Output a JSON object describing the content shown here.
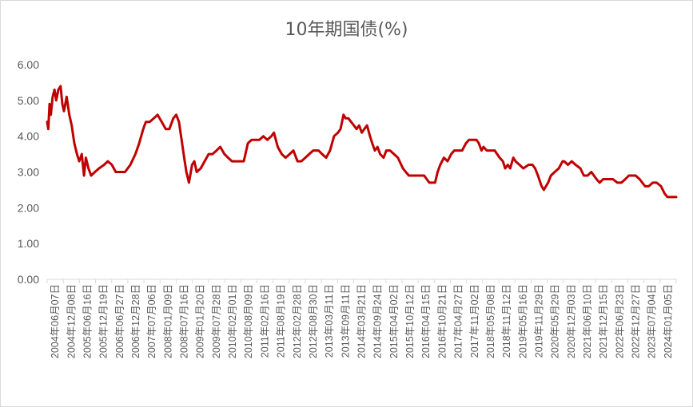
{
  "chart_data": {
    "type": "line",
    "title": "10年期国债(%)",
    "xlabel": "",
    "ylabel": "",
    "ylim": [
      0,
      6
    ],
    "yticks": [
      "0.00",
      "1.00",
      "2.00",
      "3.00",
      "4.00",
      "5.00",
      "6.00"
    ],
    "grid": false,
    "legend": "none",
    "line_color": "#c00000",
    "x_tick_labels": [
      "2004年06月07日",
      "2004年12月08日",
      "2005年06月16日",
      "2005年12月19日",
      "2006年06月27日",
      "2006年12月28日",
      "2007年07月06日",
      "2008年01月09日",
      "2008年07月16日",
      "2009年01月20日",
      "2009年07月28日",
      "2010年02月01日",
      "2010年08月09日",
      "2011年02月16日",
      "2011年08月19日",
      "2012年02月28日",
      "2012年08月30日",
      "2013年03月11日",
      "2013年09月11日",
      "2014年03月21日",
      "2014年09月24日",
      "2015年04月02日",
      "2015年10月12日",
      "2016年04月15日",
      "2016年10月21日",
      "2017年04月27日",
      "2017年11月02日",
      "2018年05月08日",
      "2018年11月12日",
      "2019年05月16日",
      "2019年11月29日",
      "2020年05月29日",
      "2020年12月03日",
      "2021年06月10日",
      "2021年12月15日",
      "2022年06月23日",
      "2022年12月27日",
      "2023年07月04日",
      "2024年01月05日"
    ],
    "x_start": "2004-06-07",
    "x_end": "2024-06-30",
    "series": [
      {
        "points": [
          [
            "2004-06-07",
            4.4
          ],
          [
            "2004-06-20",
            4.2
          ],
          [
            "2004-07-05",
            4.9
          ],
          [
            "2004-07-20",
            4.6
          ],
          [
            "2004-08-10",
            5.1
          ],
          [
            "2004-09-01",
            5.3
          ],
          [
            "2004-09-20",
            5.0
          ],
          [
            "2004-10-15",
            5.3
          ],
          [
            "2004-11-10",
            5.4
          ],
          [
            "2004-12-01",
            4.9
          ],
          [
            "2004-12-20",
            4.7
          ],
          [
            "2005-01-20",
            5.1
          ],
          [
            "2005-02-20",
            4.6
          ],
          [
            "2005-03-20",
            4.3
          ],
          [
            "2005-04-20",
            3.8
          ],
          [
            "2005-05-20",
            3.5
          ],
          [
            "2005-06-15",
            3.3
          ],
          [
            "2005-07-15",
            3.5
          ],
          [
            "2005-08-10",
            2.9
          ],
          [
            "2005-09-01",
            3.4
          ],
          [
            "2005-10-01",
            3.1
          ],
          [
            "2005-11-01",
            2.9
          ],
          [
            "2005-12-15",
            3.0
          ],
          [
            "2006-02-01",
            3.1
          ],
          [
            "2006-04-01",
            3.2
          ],
          [
            "2006-05-15",
            3.3
          ],
          [
            "2006-07-01",
            3.2
          ],
          [
            "2006-08-15",
            3.0
          ],
          [
            "2006-10-01",
            3.0
          ],
          [
            "2006-12-01",
            3.0
          ],
          [
            "2007-02-01",
            3.2
          ],
          [
            "2007-04-01",
            3.5
          ],
          [
            "2007-05-15",
            3.8
          ],
          [
            "2007-07-01",
            4.2
          ],
          [
            "2007-08-01",
            4.4
          ],
          [
            "2007-09-15",
            4.4
          ],
          [
            "2007-11-01",
            4.5
          ],
          [
            "2007-12-15",
            4.6
          ],
          [
            "2008-02-01",
            4.4
          ],
          [
            "2008-03-20",
            4.2
          ],
          [
            "2008-05-01",
            4.2
          ],
          [
            "2008-06-15",
            4.5
          ],
          [
            "2008-07-20",
            4.6
          ],
          [
            "2008-08-20",
            4.4
          ],
          [
            "2008-09-20",
            3.9
          ],
          [
            "2008-10-20",
            3.4
          ],
          [
            "2008-11-15",
            3.0
          ],
          [
            "2008-12-15",
            2.7
          ],
          [
            "2009-01-20",
            3.2
          ],
          [
            "2009-02-15",
            3.3
          ],
          [
            "2009-03-15",
            3.0
          ],
          [
            "2009-05-01",
            3.1
          ],
          [
            "2009-06-15",
            3.3
          ],
          [
            "2009-08-01",
            3.5
          ],
          [
            "2009-09-15",
            3.5
          ],
          [
            "2009-11-01",
            3.6
          ],
          [
            "2009-12-15",
            3.7
          ],
          [
            "2010-02-01",
            3.5
          ],
          [
            "2010-03-15",
            3.4
          ],
          [
            "2010-05-01",
            3.3
          ],
          [
            "2010-06-15",
            3.3
          ],
          [
            "2010-08-01",
            3.3
          ],
          [
            "2010-09-15",
            3.3
          ],
          [
            "2010-11-01",
            3.8
          ],
          [
            "2010-12-15",
            3.9
          ],
          [
            "2011-02-01",
            3.9
          ],
          [
            "2011-03-15",
            3.9
          ],
          [
            "2011-05-01",
            4.0
          ],
          [
            "2011-06-15",
            3.9
          ],
          [
            "2011-08-01",
            4.0
          ],
          [
            "2011-09-01",
            4.1
          ],
          [
            "2011-10-15",
            3.7
          ],
          [
            "2011-12-01",
            3.5
          ],
          [
            "2012-01-15",
            3.4
          ],
          [
            "2012-03-01",
            3.5
          ],
          [
            "2012-04-15",
            3.6
          ],
          [
            "2012-06-01",
            3.3
          ],
          [
            "2012-07-15",
            3.3
          ],
          [
            "2012-09-01",
            3.4
          ],
          [
            "2012-10-15",
            3.5
          ],
          [
            "2012-12-01",
            3.6
          ],
          [
            "2013-02-01",
            3.6
          ],
          [
            "2013-03-15",
            3.5
          ],
          [
            "2013-05-01",
            3.4
          ],
          [
            "2013-06-15",
            3.6
          ],
          [
            "2013-08-01",
            4.0
          ],
          [
            "2013-09-15",
            4.1
          ],
          [
            "2013-10-15",
            4.2
          ],
          [
            "2013-11-20",
            4.6
          ],
          [
            "2013-12-15",
            4.5
          ],
          [
            "2014-01-15",
            4.5
          ],
          [
            "2014-02-15",
            4.4
          ],
          [
            "2014-03-21",
            4.3
          ],
          [
            "2014-04-20",
            4.2
          ],
          [
            "2014-05-20",
            4.3
          ],
          [
            "2014-06-20",
            4.1
          ],
          [
            "2014-07-20",
            4.2
          ],
          [
            "2014-08-20",
            4.3
          ],
          [
            "2014-09-24",
            4.0
          ],
          [
            "2014-10-20",
            3.8
          ],
          [
            "2014-11-20",
            3.6
          ],
          [
            "2014-12-20",
            3.7
          ],
          [
            "2015-01-20",
            3.5
          ],
          [
            "2015-03-01",
            3.4
          ],
          [
            "2015-04-02",
            3.6
          ],
          [
            "2015-05-15",
            3.6
          ],
          [
            "2015-07-01",
            3.5
          ],
          [
            "2015-08-15",
            3.4
          ],
          [
            "2015-10-12",
            3.1
          ],
          [
            "2015-11-15",
            3.0
          ],
          [
            "2015-12-20",
            2.9
          ],
          [
            "2016-02-15",
            2.9
          ],
          [
            "2016-04-15",
            2.9
          ],
          [
            "2016-06-15",
            2.9
          ],
          [
            "2016-08-15",
            2.7
          ],
          [
            "2016-10-21",
            2.7
          ],
          [
            "2016-11-20",
            3.0
          ],
          [
            "2016-12-20",
            3.2
          ],
          [
            "2017-02-01",
            3.4
          ],
          [
            "2017-03-15",
            3.3
          ],
          [
            "2017-04-27",
            3.5
          ],
          [
            "2017-06-01",
            3.6
          ],
          [
            "2017-07-15",
            3.6
          ],
          [
            "2017-09-01",
            3.6
          ],
          [
            "2017-10-15",
            3.8
          ],
          [
            "2017-11-20",
            3.9
          ],
          [
            "2018-01-15",
            3.9
          ],
          [
            "2018-02-15",
            3.9
          ],
          [
            "2018-03-15",
            3.8
          ],
          [
            "2018-04-15",
            3.6
          ],
          [
            "2018-05-08",
            3.7
          ],
          [
            "2018-06-15",
            3.6
          ],
          [
            "2018-08-01",
            3.6
          ],
          [
            "2018-09-15",
            3.6
          ],
          [
            "2018-11-12",
            3.4
          ],
          [
            "2018-12-20",
            3.3
          ],
          [
            "2019-01-15",
            3.1
          ],
          [
            "2019-02-15",
            3.2
          ],
          [
            "2019-03-15",
            3.1
          ],
          [
            "2019-04-20",
            3.4
          ],
          [
            "2019-05-16",
            3.3
          ],
          [
            "2019-07-01",
            3.2
          ],
          [
            "2019-08-15",
            3.1
          ],
          [
            "2019-10-15",
            3.2
          ],
          [
            "2019-11-29",
            3.2
          ],
          [
            "2019-12-31",
            3.1
          ],
          [
            "2020-02-01",
            2.9
          ],
          [
            "2020-03-15",
            2.6
          ],
          [
            "2020-04-10",
            2.5
          ],
          [
            "2020-05-29",
            2.7
          ],
          [
            "2020-07-01",
            2.9
          ],
          [
            "2020-08-15",
            3.0
          ],
          [
            "2020-10-01",
            3.1
          ],
          [
            "2020-11-15",
            3.3
          ],
          [
            "2020-12-03",
            3.3
          ],
          [
            "2021-01-15",
            3.2
          ],
          [
            "2021-03-01",
            3.3
          ],
          [
            "2021-04-15",
            3.2
          ],
          [
            "2021-06-10",
            3.1
          ],
          [
            "2021-07-20",
            2.9
          ],
          [
            "2021-09-01",
            2.9
          ],
          [
            "2021-10-15",
            3.0
          ],
          [
            "2021-12-15",
            2.8
          ],
          [
            "2022-01-20",
            2.7
          ],
          [
            "2022-03-01",
            2.8
          ],
          [
            "2022-04-15",
            2.8
          ],
          [
            "2022-06-23",
            2.8
          ],
          [
            "2022-08-15",
            2.7
          ],
          [
            "2022-10-01",
            2.7
          ],
          [
            "2022-11-15",
            2.8
          ],
          [
            "2022-12-27",
            2.9
          ],
          [
            "2023-02-01",
            2.9
          ],
          [
            "2023-03-15",
            2.9
          ],
          [
            "2023-05-01",
            2.8
          ],
          [
            "2023-07-04",
            2.6
          ],
          [
            "2023-08-15",
            2.6
          ],
          [
            "2023-10-01",
            2.7
          ],
          [
            "2023-11-15",
            2.7
          ],
          [
            "2024-01-05",
            2.6
          ],
          [
            "2024-02-15",
            2.4
          ],
          [
            "2024-03-20",
            2.3
          ],
          [
            "2024-04-20",
            2.3
          ],
          [
            "2024-05-20",
            2.3
          ],
          [
            "2024-06-30",
            2.3
          ]
        ]
      }
    ]
  }
}
